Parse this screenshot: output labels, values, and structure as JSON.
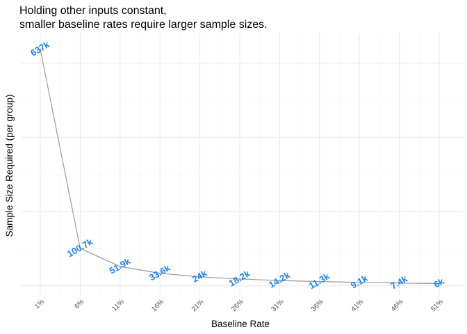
{
  "chart_data": {
    "type": "line",
    "title_lines": [
      "Holding other inputs constant,",
      "smaller baseline rates require larger sample sizes."
    ],
    "xlabel": "Baseline Rate",
    "ylabel": "Sample Size Required (per group)",
    "categories": [
      "1%",
      "6%",
      "11%",
      "16%",
      "21%",
      "26%",
      "31%",
      "36%",
      "41%",
      "46%",
      "51%"
    ],
    "series": [
      {
        "values": [
          637000,
          100700,
          51900,
          33600,
          24000,
          18200,
          14200,
          11300,
          9100,
          7400,
          6000
        ],
        "labels": [
          "637k",
          "100.7k",
          "51.9k",
          "33.6k",
          "24k",
          "18.2k",
          "14.2k",
          "11.3k",
          "9.1k",
          "7.4k",
          "6k"
        ]
      }
    ],
    "ylim": [
      -25000,
      680000
    ],
    "y_tick_labels_shown": false,
    "grid": true,
    "line_color": "#999999",
    "label_color": "#1e7ff0"
  }
}
